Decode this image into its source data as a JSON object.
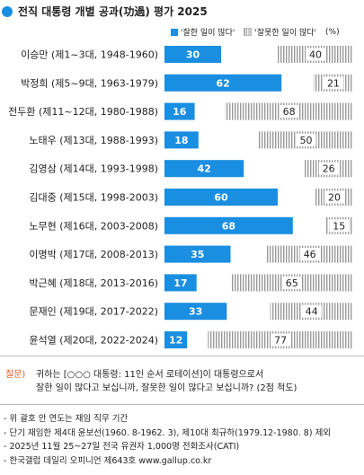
{
  "title": "전직 대통령 개별 공과(功過) 평가 2025",
  "legend": {
    "positive": "'잘한 일이 많다'",
    "negative": "'잘못한 일이 많다'",
    "unit": "(%)"
  },
  "colors": {
    "positive": "#1a8ee1",
    "negative": "#9a9a9a"
  },
  "chart_data": {
    "type": "bar",
    "orientation": "horizontal-stacked",
    "categories": [
      "이승만 (제1~3대, 1948-1960)",
      "박정희 (제5~9대, 1963-1979)",
      "전두환 (제11~12대, 1980-1988)",
      "노태우 (제13대, 1988-1993)",
      "김영삼 (제14대, 1993-1998)",
      "김대중 (제15대, 1998-2003)",
      "노무현 (제16대, 2003-2008)",
      "이명박 (제17대, 2008-2013)",
      "박근혜 (제18대, 2013-2016)",
      "문재인 (제19대, 2017-2022)",
      "윤석열 (제20대, 2022-2024)"
    ],
    "series": [
      {
        "name": "'잘한 일이 많다'",
        "values": [
          30,
          62,
          16,
          18,
          42,
          60,
          68,
          35,
          17,
          33,
          12
        ]
      },
      {
        "name": "'잘못한 일이 많다'",
        "values": [
          40,
          21,
          68,
          50,
          26,
          20,
          15,
          46,
          65,
          44,
          77
        ]
      }
    ],
    "xlim": [
      0,
      100
    ]
  },
  "question": {
    "label": "질문)",
    "line1": "귀하는 [○○○ 대통령: 11인 순서 로테이션]이 대통령으로서",
    "line2": "잘한 일이 많다고 보십니까, 잘못한 일이 많다고 보십니까? (2점 척도)"
  },
  "notes": [
    "- 위 괄호 안 연도는 재임 직무 기간",
    "- 단기 재임한 제4대 윤보선(1960. 8-1962. 3), 제10대 최규하(1979.12-1980. 8) 제외",
    "- 2025년 11월 25~27일 전국 유권자 1,000명 전화조사(CATI)",
    "- 한국갤럽 데일리 오피니언 제643호 www.gallup.co.kr"
  ]
}
